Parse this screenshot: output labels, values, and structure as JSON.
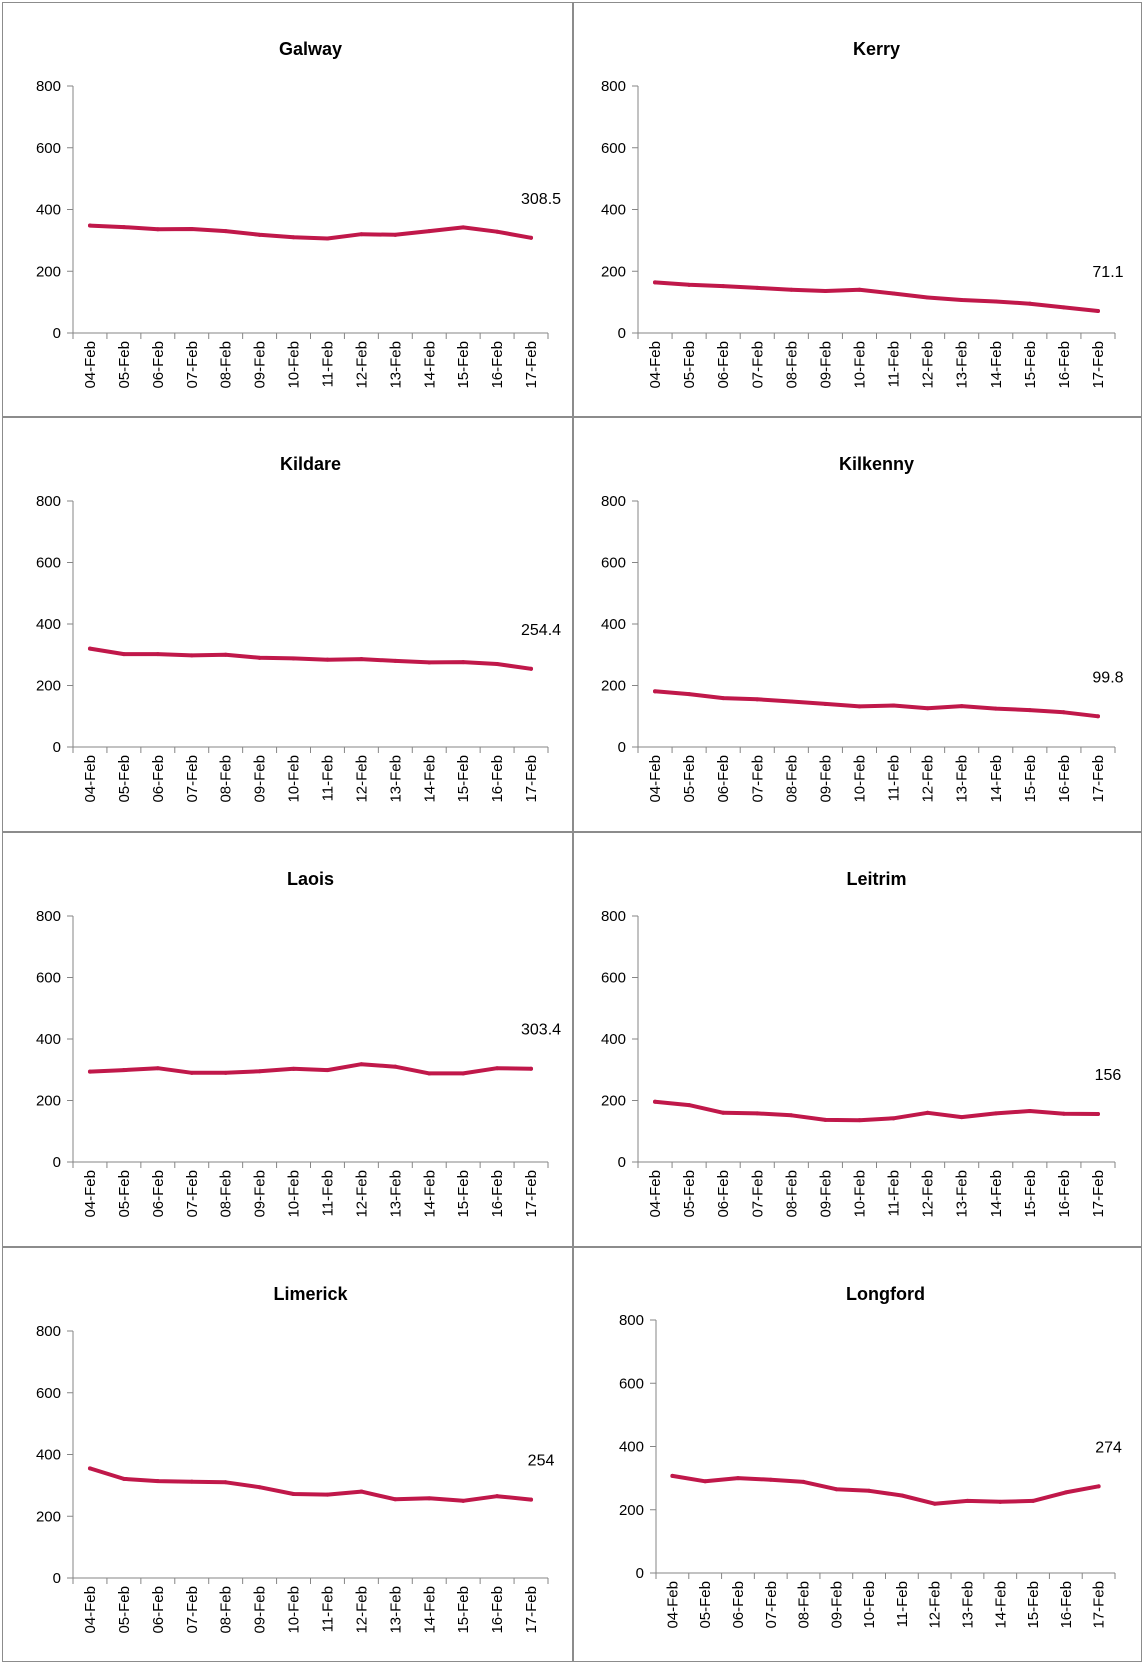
{
  "chart_data": [
    {
      "type": "line",
      "title": "Galway",
      "categories": [
        "04-Feb",
        "05-Feb",
        "06-Feb",
        "07-Feb",
        "08-Feb",
        "09-Feb",
        "10-Feb",
        "11-Feb",
        "12-Feb",
        "13-Feb",
        "14-Feb",
        "15-Feb",
        "16-Feb",
        "17-Feb"
      ],
      "values": [
        348,
        343,
        336,
        337,
        330,
        318,
        310,
        306,
        320,
        318,
        330,
        342,
        328,
        308.5
      ],
      "yticks": [
        0,
        200,
        400,
        600,
        800
      ],
      "ylim": [
        0,
        800
      ],
      "data_label": "308.5"
    },
    {
      "type": "line",
      "title": "Kerry",
      "categories": [
        "04-Feb",
        "05-Feb",
        "06-Feb",
        "07-Feb",
        "08-Feb",
        "09-Feb",
        "10-Feb",
        "11-Feb",
        "12-Feb",
        "13-Feb",
        "14-Feb",
        "15-Feb",
        "16-Feb",
        "17-Feb"
      ],
      "values": [
        164,
        156,
        152,
        146,
        140,
        136,
        140,
        128,
        115,
        107,
        102,
        95,
        83,
        71.1
      ],
      "yticks": [
        0,
        200,
        400,
        600,
        800
      ],
      "ylim": [
        0,
        800
      ],
      "data_label": "71.1"
    },
    {
      "type": "line",
      "title": "Kildare",
      "categories": [
        "04-Feb",
        "05-Feb",
        "06-Feb",
        "07-Feb",
        "08-Feb",
        "09-Feb",
        "10-Feb",
        "11-Feb",
        "12-Feb",
        "13-Feb",
        "14-Feb",
        "15-Feb",
        "16-Feb",
        "17-Feb"
      ],
      "values": [
        320,
        302,
        302,
        298,
        300,
        290,
        288,
        284,
        286,
        280,
        275,
        276,
        270,
        254.4
      ],
      "yticks": [
        0,
        200,
        400,
        600,
        800
      ],
      "ylim": [
        0,
        800
      ],
      "data_label": "254.4"
    },
    {
      "type": "line",
      "title": "Kilkenny",
      "categories": [
        "04-Feb",
        "05-Feb",
        "06-Feb",
        "07-Feb",
        "08-Feb",
        "09-Feb",
        "10-Feb",
        "11-Feb",
        "12-Feb",
        "13-Feb",
        "14-Feb",
        "15-Feb",
        "16-Feb",
        "17-Feb"
      ],
      "values": [
        181,
        172,
        159,
        155,
        148,
        140,
        132,
        135,
        126,
        133,
        125,
        120,
        113,
        99.8
      ],
      "yticks": [
        0,
        200,
        400,
        600,
        800
      ],
      "ylim": [
        0,
        800
      ],
      "data_label": "99.8"
    },
    {
      "type": "line",
      "title": "Laois",
      "categories": [
        "04-Feb",
        "05-Feb",
        "06-Feb",
        "07-Feb",
        "08-Feb",
        "09-Feb",
        "10-Feb",
        "11-Feb",
        "12-Feb",
        "13-Feb",
        "14-Feb",
        "15-Feb",
        "16-Feb",
        "17-Feb"
      ],
      "values": [
        294,
        299,
        305,
        290,
        290,
        295,
        303,
        299,
        318,
        310,
        288,
        288,
        305,
        303.4
      ],
      "yticks": [
        0,
        200,
        400,
        600,
        800
      ],
      "ylim": [
        0,
        800
      ],
      "data_label": "303.4"
    },
    {
      "type": "line",
      "title": "Leitrim",
      "categories": [
        "04-Feb",
        "05-Feb",
        "06-Feb",
        "07-Feb",
        "08-Feb",
        "09-Feb",
        "10-Feb",
        "11-Feb",
        "12-Feb",
        "13-Feb",
        "14-Feb",
        "15-Feb",
        "16-Feb",
        "17-Feb"
      ],
      "values": [
        196,
        185,
        160,
        158,
        152,
        137,
        136,
        142,
        160,
        146,
        158,
        166,
        157,
        156
      ],
      "yticks": [
        0,
        200,
        400,
        600,
        800
      ],
      "ylim": [
        0,
        800
      ],
      "data_label": "156"
    },
    {
      "type": "line",
      "title": "Limerick",
      "categories": [
        "04-Feb",
        "05-Feb",
        "06-Feb",
        "07-Feb",
        "08-Feb",
        "09-Feb",
        "10-Feb",
        "11-Feb",
        "12-Feb",
        "13-Feb",
        "14-Feb",
        "15-Feb",
        "16-Feb",
        "17-Feb"
      ],
      "values": [
        355,
        321,
        314,
        312,
        310,
        294,
        272,
        270,
        280,
        255,
        258,
        250,
        265,
        254
      ],
      "yticks": [
        0,
        200,
        400,
        600,
        800
      ],
      "ylim": [
        0,
        800
      ],
      "data_label": "254"
    },
    {
      "type": "line",
      "title": "Longford",
      "categories": [
        "04-Feb",
        "05-Feb",
        "06-Feb",
        "07-Feb",
        "08-Feb",
        "09-Feb",
        "10-Feb",
        "11-Feb",
        "12-Feb",
        "13-Feb",
        "14-Feb",
        "15-Feb",
        "16-Feb",
        "17-Feb"
      ],
      "values": [
        307,
        290,
        300,
        295,
        288,
        265,
        260,
        245,
        219,
        228,
        225,
        228,
        255,
        274
      ],
      "yticks": [
        0,
        200,
        400,
        600,
        800
      ],
      "ylim": [
        0,
        800
      ],
      "data_label": "274"
    }
  ]
}
